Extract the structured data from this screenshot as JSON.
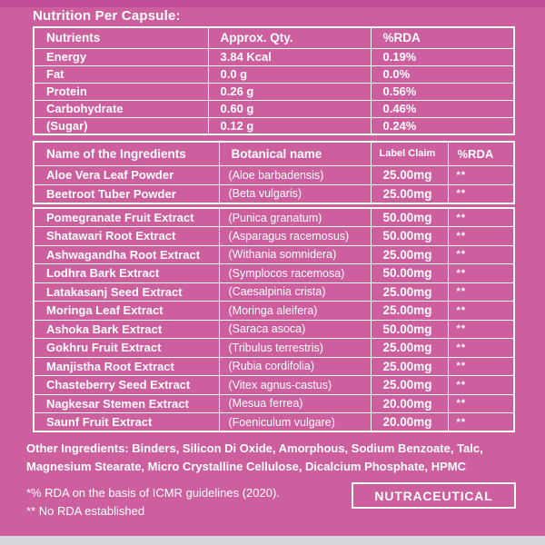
{
  "page": {
    "title": "Nutrition Per Capsule:"
  },
  "nutrition_table": {
    "headers": [
      "Nutrients",
      "Approx. Qty.",
      "%RDA"
    ],
    "rows": [
      [
        "Energy",
        "3.84 Kcal",
        "0.19%"
      ],
      [
        "Fat",
        "0.0 g",
        "0.0%"
      ],
      [
        "Protein",
        "0.26 g",
        "0.56%"
      ],
      [
        "Carbohydrate",
        "0.60 g",
        "0.46%"
      ],
      [
        "(Sugar)",
        "0.12 g",
        "0.24%"
      ]
    ]
  },
  "ingredients_table": {
    "headers": [
      "Name of the Ingredients",
      "Botanical name",
      "Label Claim",
      "%RDA"
    ],
    "rows": [
      [
        "Aloe Vera Leaf Powder",
        "(Aloe barbadensis)",
        "25.00mg",
        "**"
      ],
      [
        "Beetroot Tuber Powder",
        "(Beta vulgaris)",
        "25.00mg",
        "**"
      ]
    ]
  },
  "extracts_table": {
    "rows": [
      [
        "Pomegranate Fruit Extract",
        "(Punica granatum)",
        "50.00mg",
        "**"
      ],
      [
        "Shatawari Root Extract",
        "(Asparagus racemosus)",
        "50.00mg",
        "**"
      ],
      [
        "Ashwagandha Root Extract",
        "(Withania somnidera)",
        "25.00mg",
        "**"
      ],
      [
        "Lodhra Bark Extract",
        "(Symplocos racemosa)",
        "50.00mg",
        "**"
      ],
      [
        "Latakasanj Seed Extract",
        "(Caesalpinia crista)",
        "25.00mg",
        "**"
      ],
      [
        "Moringa Leaf Extract",
        "(Moringa aleifera)",
        "25.00mg",
        "**"
      ],
      [
        "Ashoka Bark Extract",
        "(Saraca asoca)",
        "50.00mg",
        "**"
      ],
      [
        "Gokhru Fruit Extract",
        "(Tribulus terrestris)",
        "25.00mg",
        "**"
      ],
      [
        "Manjistha Root Extract",
        "(Rubia cordifolia)",
        "25.00mg",
        "**"
      ],
      [
        "Chasteberry Seed Extract",
        "(Vitex agnus-castus)",
        "25.00mg",
        "**"
      ],
      [
        "Nagkesar Stemen Extract",
        "(Mesua ferrea)",
        "20.00mg",
        "**"
      ],
      [
        "Saunf Fruit Extract",
        "(Foeniculum vulgare)",
        "20.00mg",
        "**"
      ]
    ]
  },
  "footer": {
    "other_ingredients": "Other Ingredients: Binders, Silicon Di Oxide, Amorphous, Sodium Benzoate, Talc, Magnesium Stearate, Micro Crystalline Cellulose, Dicalcium Phosphate, HPMC",
    "rda_note": "*% RDA on the basis of ICMR guidelines (2020).",
    "no_rda_note": "** No RDA established",
    "badge": "NUTRACEUTICAL"
  },
  "colors": {
    "background": "#cd5f9e",
    "top_strip": "#c14d97",
    "bottom_strip": "#d9d5dc",
    "table_border": "#ffffff",
    "text": "#ffffff"
  }
}
